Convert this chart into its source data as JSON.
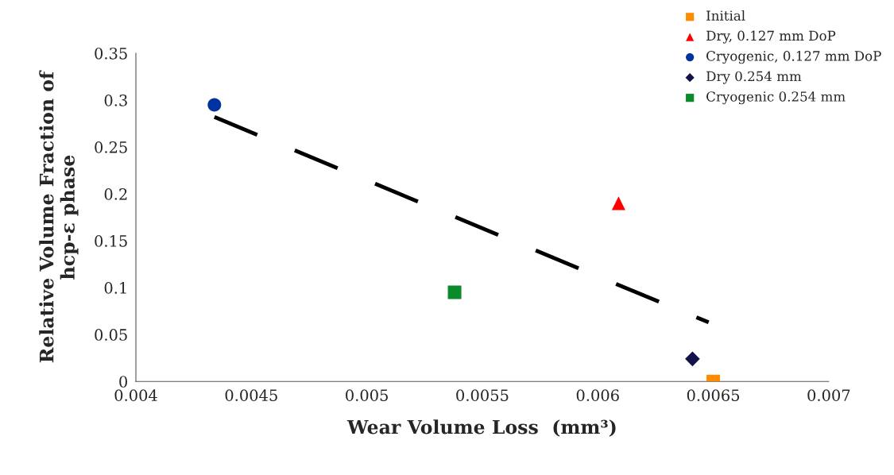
{
  "chart_data": {
    "type": "scatter",
    "xlabel": "Wear Volume Loss  (mm³)",
    "ylabel": "Relative Volume Fraction of\nhcp-ε phase",
    "series": [
      {
        "name": "Initial",
        "color": "#ff8c00",
        "marker": "square",
        "x": [
          0.0065
        ],
        "values": [
          0
        ]
      },
      {
        "name": "Dry, 0.127 mm DoP",
        "color": "#ff0000",
        "marker": "triangle",
        "x": [
          0.00609
        ],
        "values": [
          0.19
        ]
      },
      {
        "name": "Cryogenic, 0.127 mm DoP",
        "color": "#0033a0",
        "marker": "circle",
        "x": [
          0.00434
        ],
        "values": [
          0.295
        ]
      },
      {
        "name": "Dry 0.254 mm",
        "color": "#14124a",
        "marker": "diamond",
        "x": [
          0.00641
        ],
        "values": [
          0.024
        ]
      },
      {
        "name": "Cryogenic 0.254 mm",
        "color": "#0a8a2a",
        "marker": "square",
        "x": [
          0.00538
        ],
        "values": [
          0.095
        ]
      },
      {
        "type": "line",
        "color": "#000000",
        "line_style": "dashed",
        "marker": "none",
        "x": [
          0.00434,
          0.00648
        ],
        "values": [
          0.282,
          0.063
        ]
      }
    ],
    "xlim": [
      0.004,
      0.007
    ],
    "xticks": [
      0.004,
      0.0045,
      0.005,
      0.0055,
      0.006,
      0.0065,
      0.007
    ],
    "ylim": [
      0,
      0.35
    ],
    "yticks": [
      0,
      0.05,
      0.1,
      0.15,
      0.2,
      0.25,
      0.3,
      0.35
    ],
    "grid": false,
    "legend": "top right"
  }
}
